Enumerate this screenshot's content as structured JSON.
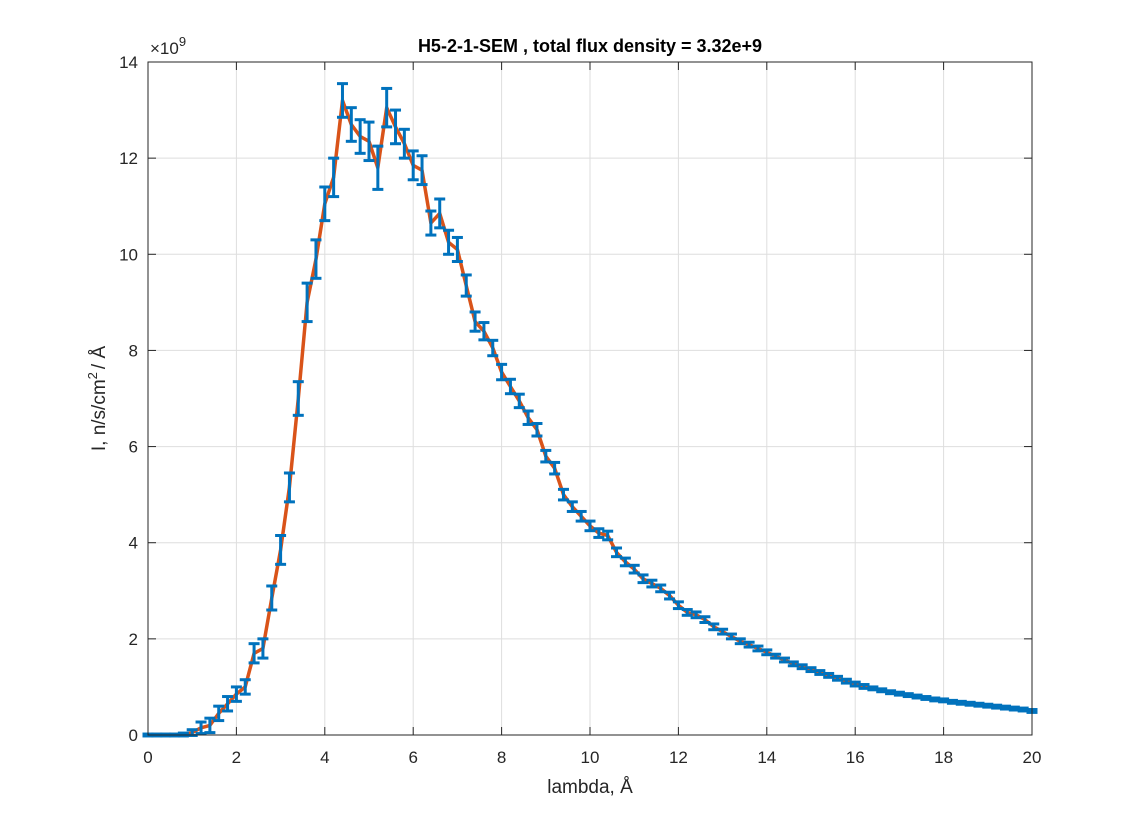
{
  "chart_data": {
    "type": "line",
    "title": "H5-2-1-SEM , total flux density =  3.32e+9",
    "xlabel": "lambda,  Å",
    "ylabel_parts": {
      "main": "I, n/s/cm",
      "sup": "2",
      "tail": "/ Å"
    },
    "y_multiplier_base": "×10",
    "y_multiplier_exp": "9",
    "xlim": [
      0,
      20
    ],
    "ylim": [
      0,
      14
    ],
    "xticks": [
      0,
      2,
      4,
      6,
      8,
      10,
      12,
      14,
      16,
      18,
      20
    ],
    "yticks": [
      0,
      2,
      4,
      6,
      8,
      10,
      12,
      14
    ],
    "grid": true,
    "colors": {
      "line": "#d95319",
      "errorbar": "#0072bd",
      "axis": "#262626",
      "grid": "#dedede"
    },
    "series": [
      {
        "x": [
          0.0,
          0.2,
          0.4,
          0.6,
          0.8,
          1.0,
          1.2,
          1.4,
          1.6,
          1.8,
          2.0,
          2.2,
          2.4,
          2.6,
          2.8,
          3.0,
          3.2,
          3.4,
          3.6,
          3.8,
          4.0,
          4.2,
          4.4,
          4.6,
          4.8,
          5.0,
          5.2,
          5.4,
          5.6,
          5.8,
          6.0,
          6.2,
          6.4,
          6.6,
          6.8,
          7.0,
          7.2,
          7.4,
          7.6,
          7.8,
          8.0,
          8.2,
          8.4,
          8.6,
          8.8,
          9.0,
          9.2,
          9.4,
          9.6,
          9.8,
          10.0,
          10.2,
          10.4,
          10.6,
          10.8,
          11.0,
          11.2,
          11.4,
          11.6,
          11.8,
          12.0,
          12.2,
          12.4,
          12.6,
          12.8,
          13.0,
          13.2,
          13.4,
          13.6,
          13.8,
          14.0,
          14.2,
          14.4,
          14.6,
          14.8,
          15.0,
          15.2,
          15.4,
          15.6,
          15.8,
          16.0,
          16.2,
          16.4,
          16.6,
          16.8,
          17.0,
          17.2,
          17.4,
          17.6,
          17.8,
          18.0,
          18.2,
          18.4,
          18.6,
          18.8,
          19.0,
          19.2,
          19.4,
          19.6,
          19.8,
          20.0
        ],
        "y": [
          0.0,
          0.0,
          0.0,
          0.0,
          0.01,
          0.05,
          0.15,
          0.2,
          0.45,
          0.65,
          0.85,
          1.0,
          1.7,
          1.8,
          2.85,
          3.85,
          5.15,
          7.0,
          9.0,
          9.9,
          11.05,
          11.6,
          13.2,
          12.7,
          12.45,
          12.35,
          11.8,
          13.05,
          12.65,
          12.3,
          11.85,
          11.75,
          10.65,
          10.85,
          10.25,
          10.1,
          9.35,
          8.6,
          8.4,
          8.05,
          7.55,
          7.25,
          6.95,
          6.6,
          6.35,
          5.8,
          5.55,
          5.0,
          4.75,
          4.55,
          4.35,
          4.2,
          4.15,
          3.8,
          3.6,
          3.45,
          3.25,
          3.15,
          3.05,
          2.9,
          2.7,
          2.55,
          2.5,
          2.4,
          2.25,
          2.15,
          2.05,
          1.95,
          1.88,
          1.8,
          1.72,
          1.64,
          1.56,
          1.48,
          1.42,
          1.36,
          1.3,
          1.24,
          1.18,
          1.12,
          1.06,
          1.01,
          0.97,
          0.93,
          0.89,
          0.86,
          0.83,
          0.8,
          0.77,
          0.74,
          0.72,
          0.69,
          0.67,
          0.65,
          0.63,
          0.61,
          0.59,
          0.57,
          0.55,
          0.53,
          0.5
        ],
        "err": [
          0.02,
          0.02,
          0.02,
          0.02,
          0.03,
          0.06,
          0.12,
          0.15,
          0.15,
          0.15,
          0.15,
          0.15,
          0.2,
          0.2,
          0.25,
          0.3,
          0.3,
          0.35,
          0.4,
          0.4,
          0.35,
          0.4,
          0.35,
          0.35,
          0.35,
          0.4,
          0.45,
          0.4,
          0.35,
          0.3,
          0.3,
          0.3,
          0.25,
          0.3,
          0.25,
          0.25,
          0.22,
          0.2,
          0.18,
          0.16,
          0.16,
          0.15,
          0.14,
          0.14,
          0.13,
          0.12,
          0.12,
          0.11,
          0.1,
          0.1,
          0.1,
          0.09,
          0.09,
          0.09,
          0.08,
          0.08,
          0.08,
          0.07,
          0.07,
          0.07,
          0.07,
          0.06,
          0.06,
          0.06,
          0.06,
          0.05,
          0.05,
          0.05,
          0.05,
          0.05,
          0.05,
          0.04,
          0.04,
          0.04,
          0.04,
          0.04,
          0.04,
          0.04,
          0.04,
          0.04,
          0.04,
          0.04,
          0.03,
          0.03,
          0.03,
          0.03,
          0.03,
          0.03,
          0.03,
          0.03,
          0.03,
          0.03,
          0.03,
          0.03,
          0.03,
          0.03,
          0.03,
          0.03,
          0.03,
          0.03,
          0.03
        ]
      }
    ]
  }
}
